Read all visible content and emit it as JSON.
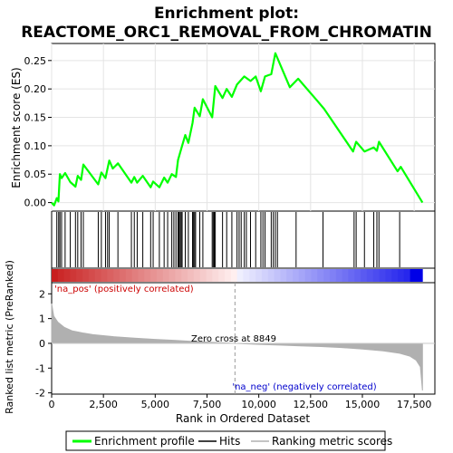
{
  "chart_data": {
    "type": "line",
    "title_line1": "Enrichment plot:",
    "title_line2": "REACTOME_ORC1_REMOVAL_FROM_CHROMATIN",
    "colors": {
      "enrichment": "#00ff00",
      "hits": "#000000",
      "metric": "#b0b0b0",
      "positive_label": "#cc0000",
      "negative_label": "#0000cc"
    },
    "es_panel": {
      "ylabel": "Enrichment score (ES)",
      "ylim": [
        -0.015,
        0.28
      ],
      "yticks": [
        0.0,
        0.05,
        0.1,
        0.15,
        0.2,
        0.25
      ],
      "ytick_labels": [
        "0.00",
        "0.05",
        "0.10",
        "0.15",
        "0.20",
        "0.25"
      ],
      "points": [
        [
          0,
          0.0
        ],
        [
          120,
          -0.005
        ],
        [
          250,
          0.008
        ],
        [
          330,
          0.002
        ],
        [
          400,
          0.05
        ],
        [
          480,
          0.043
        ],
        [
          650,
          0.052
        ],
        [
          900,
          0.036
        ],
        [
          1150,
          0.028
        ],
        [
          1260,
          0.047
        ],
        [
          1420,
          0.04
        ],
        [
          1530,
          0.067
        ],
        [
          2250,
          0.032
        ],
        [
          2400,
          0.053
        ],
        [
          2600,
          0.043
        ],
        [
          2780,
          0.074
        ],
        [
          2950,
          0.06
        ],
        [
          3200,
          0.069
        ],
        [
          3850,
          0.035
        ],
        [
          3990,
          0.045
        ],
        [
          4130,
          0.035
        ],
        [
          4400,
          0.047
        ],
        [
          4780,
          0.027
        ],
        [
          4900,
          0.037
        ],
        [
          5200,
          0.027
        ],
        [
          5430,
          0.044
        ],
        [
          5600,
          0.035
        ],
        [
          5800,
          0.05
        ],
        [
          6000,
          0.045
        ],
        [
          6100,
          0.075
        ],
        [
          6300,
          0.1
        ],
        [
          6450,
          0.119
        ],
        [
          6600,
          0.105
        ],
        [
          6800,
          0.14
        ],
        [
          6900,
          0.167
        ],
        [
          7150,
          0.152
        ],
        [
          7300,
          0.182
        ],
        [
          7750,
          0.15
        ],
        [
          7900,
          0.205
        ],
        [
          8250,
          0.184
        ],
        [
          8450,
          0.2
        ],
        [
          8700,
          0.186
        ],
        [
          8950,
          0.208
        ],
        [
          9300,
          0.222
        ],
        [
          9600,
          0.214
        ],
        [
          9850,
          0.222
        ],
        [
          10100,
          0.196
        ],
        [
          10300,
          0.222
        ],
        [
          10600,
          0.226
        ],
        [
          10800,
          0.263
        ],
        [
          11500,
          0.203
        ],
        [
          11900,
          0.218
        ],
        [
          12800,
          0.18
        ],
        [
          13150,
          0.165
        ],
        [
          14550,
          0.09
        ],
        [
          14700,
          0.107
        ],
        [
          15100,
          0.09
        ],
        [
          15550,
          0.097
        ],
        [
          15700,
          0.091
        ],
        [
          15800,
          0.107
        ],
        [
          16700,
          0.055
        ],
        [
          16850,
          0.063
        ],
        [
          17900,
          0.0
        ]
      ]
    },
    "hits": [
      250,
      340,
      400,
      480,
      650,
      900,
      1150,
      1260,
      1420,
      1530,
      2250,
      2400,
      2600,
      2700,
      2780,
      3200,
      3850,
      3990,
      4130,
      4400,
      4780,
      4900,
      5200,
      5430,
      5600,
      5800,
      5900,
      6000,
      6100,
      6150,
      6200,
      6250,
      6300,
      6450,
      6600,
      6800,
      6850,
      6900,
      6950,
      7150,
      7300,
      7750,
      7800,
      7850,
      7900,
      8250,
      8450,
      8700,
      8950,
      9050,
      9150,
      9300,
      9400,
      9600,
      9850,
      10100,
      10200,
      10300,
      10600,
      10700,
      10800,
      10900,
      11800,
      13100,
      14600,
      14700,
      15100,
      15550,
      15700,
      15800,
      16800
    ],
    "metric_panel": {
      "ylabel": "Ranked list metric (PreRanked)",
      "ylim": [
        -2.05,
        2.45
      ],
      "yticks": [
        -2,
        -1,
        0,
        1,
        2
      ],
      "ytick_labels": [
        "-2",
        "-1",
        "0",
        "1",
        "2"
      ],
      "curve": [
        [
          0,
          1.6
        ],
        [
          100,
          1.1
        ],
        [
          300,
          0.85
        ],
        [
          600,
          0.65
        ],
        [
          1000,
          0.5
        ],
        [
          1500,
          0.42
        ],
        [
          2000,
          0.35
        ],
        [
          3000,
          0.27
        ],
        [
          4000,
          0.21
        ],
        [
          5000,
          0.16
        ],
        [
          6000,
          0.12
        ],
        [
          7000,
          0.07
        ],
        [
          8000,
          0.03
        ],
        [
          8849,
          0.0
        ],
        [
          10000,
          -0.04
        ],
        [
          11000,
          -0.07
        ],
        [
          12000,
          -0.1
        ],
        [
          13000,
          -0.13
        ],
        [
          14000,
          -0.17
        ],
        [
          15000,
          -0.23
        ],
        [
          16000,
          -0.3
        ],
        [
          16800,
          -0.4
        ],
        [
          17300,
          -0.52
        ],
        [
          17600,
          -0.68
        ],
        [
          17800,
          -0.95
        ],
        [
          17900,
          -1.9
        ]
      ],
      "zero_cross_label": "Zero cross at 8849",
      "zero_cross": 8849,
      "positive_label": "'na_pos' (positively correlated)",
      "negative_label": "'na_neg' (negatively correlated)"
    },
    "x_axis": {
      "xlabel": "Rank in Ordered Dataset",
      "xlim": [
        0,
        18500
      ],
      "xticks": [
        0,
        2500,
        5000,
        7500,
        10000,
        12500,
        15000,
        17500
      ],
      "xtick_labels": [
        "0",
        "2,500",
        "5,000",
        "7,500",
        "10,000",
        "12,500",
        "15,000",
        "17,500"
      ]
    },
    "legend": [
      {
        "label": "Enrichment profile",
        "kind": "line",
        "color": "#00ff00"
      },
      {
        "label": "Hits",
        "kind": "line",
        "color": "#000000"
      },
      {
        "label": "Ranking metric scores",
        "kind": "line",
        "color": "#b0b0b0"
      }
    ]
  }
}
